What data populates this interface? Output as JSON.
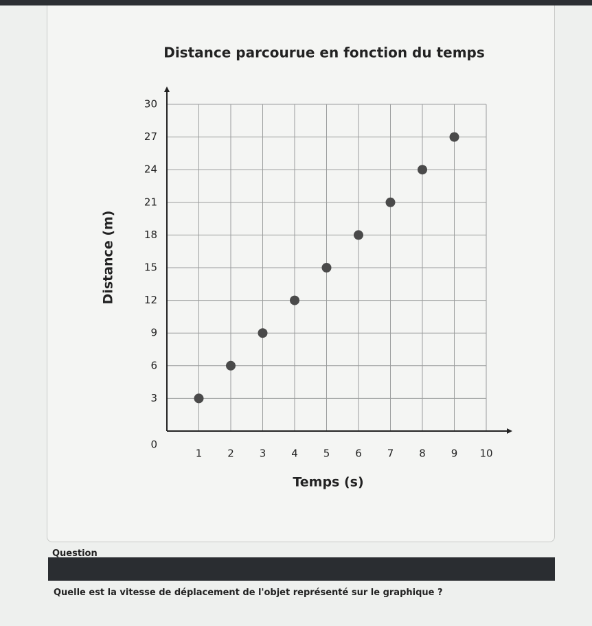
{
  "chart_data": {
    "type": "scatter",
    "title": "Distance parcourue en fonction du temps",
    "x_label": "Temps (s)",
    "y_label": "Distance (m)",
    "x": [
      1,
      2,
      3,
      4,
      5,
      6,
      7,
      8,
      9
    ],
    "values": [
      3,
      6,
      9,
      12,
      15,
      18,
      21,
      24,
      27
    ],
    "color": "#4a4a4a",
    "xlim": [
      0,
      10
    ],
    "xticks": [
      1,
      2,
      3,
      4,
      5,
      6,
      7,
      8,
      9,
      10
    ],
    "ylim": [
      0,
      30
    ],
    "yticks": [
      0,
      3,
      6,
      9,
      12,
      15,
      18,
      21,
      24,
      27,
      30
    ],
    "grid": true
  },
  "question": {
    "header": "Question",
    "text": "Quelle est la vitesse de déplacement de l'objet représenté sur le graphique ?"
  }
}
